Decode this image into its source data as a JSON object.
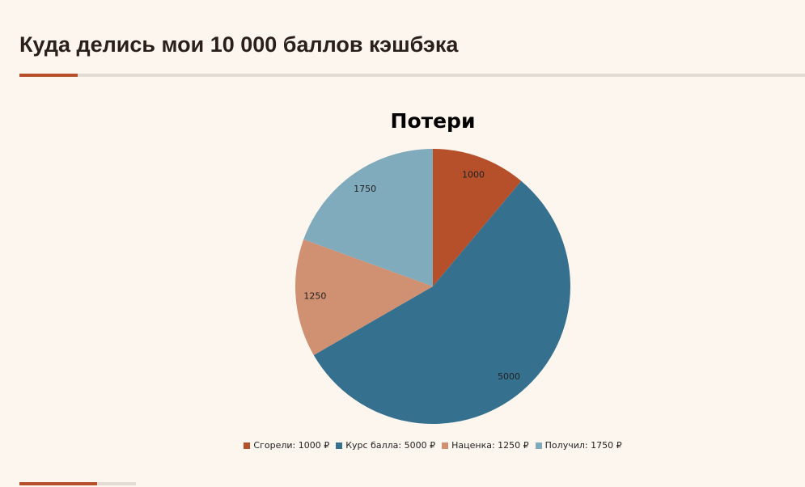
{
  "header": {
    "title": "Куда делись мои 10 000 баллов кэшбэка"
  },
  "chart_data": {
    "type": "pie",
    "title": "Потери",
    "categories": [
      "Сгорели: 1000 ₽",
      "Курс балла: 5000 ₽",
      "Наценка: 1250 ₽",
      "Получил: 1750 ₽"
    ],
    "values": [
      1000,
      5000,
      1250,
      1750
    ],
    "colors": [
      "#b5502a",
      "#35718e",
      "#d09072",
      "#7fabbd"
    ]
  }
}
